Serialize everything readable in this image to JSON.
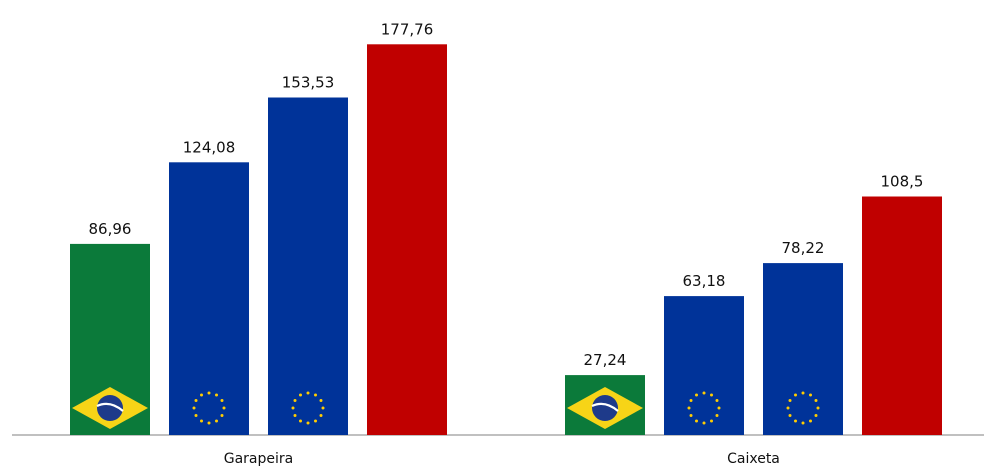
{
  "chart_data": {
    "type": "bar",
    "categories": [
      "Garapeira",
      "Caixeta"
    ],
    "series": [
      {
        "values": [
          86.96,
          27.24
        ],
        "labels": [
          "86,96",
          "27,24"
        ],
        "color": "#0b7a3a",
        "icon": "brazil-flag-icon"
      },
      {
        "values": [
          124.08,
          63.18
        ],
        "labels": [
          "124,08",
          "63,18"
        ],
        "color": "#003399",
        "icon": "eu-flag-icon"
      },
      {
        "values": [
          153.53,
          78.22
        ],
        "labels": [
          "153,53",
          "78,22"
        ],
        "color": "#003399",
        "icon": "eu-flag-icon"
      },
      {
        "values": [
          177.76,
          108.5
        ],
        "labels": [
          "177,76",
          "108,5"
        ],
        "color": "#c00000",
        "icon": ""
      }
    ],
    "title": "",
    "xlabel": "",
    "ylabel": "",
    "ylim": [
      0,
      200
    ],
    "grid": false,
    "legend": "none"
  },
  "colors": {
    "brazil_green": "#0b7a3a",
    "brazil_yellow": "#f7d417",
    "brazil_blue": "#1e3a8a",
    "eu_blue": "#003399",
    "eu_star": "#ffcc00",
    "red": "#c00000",
    "axis": "#9a9a9a"
  }
}
